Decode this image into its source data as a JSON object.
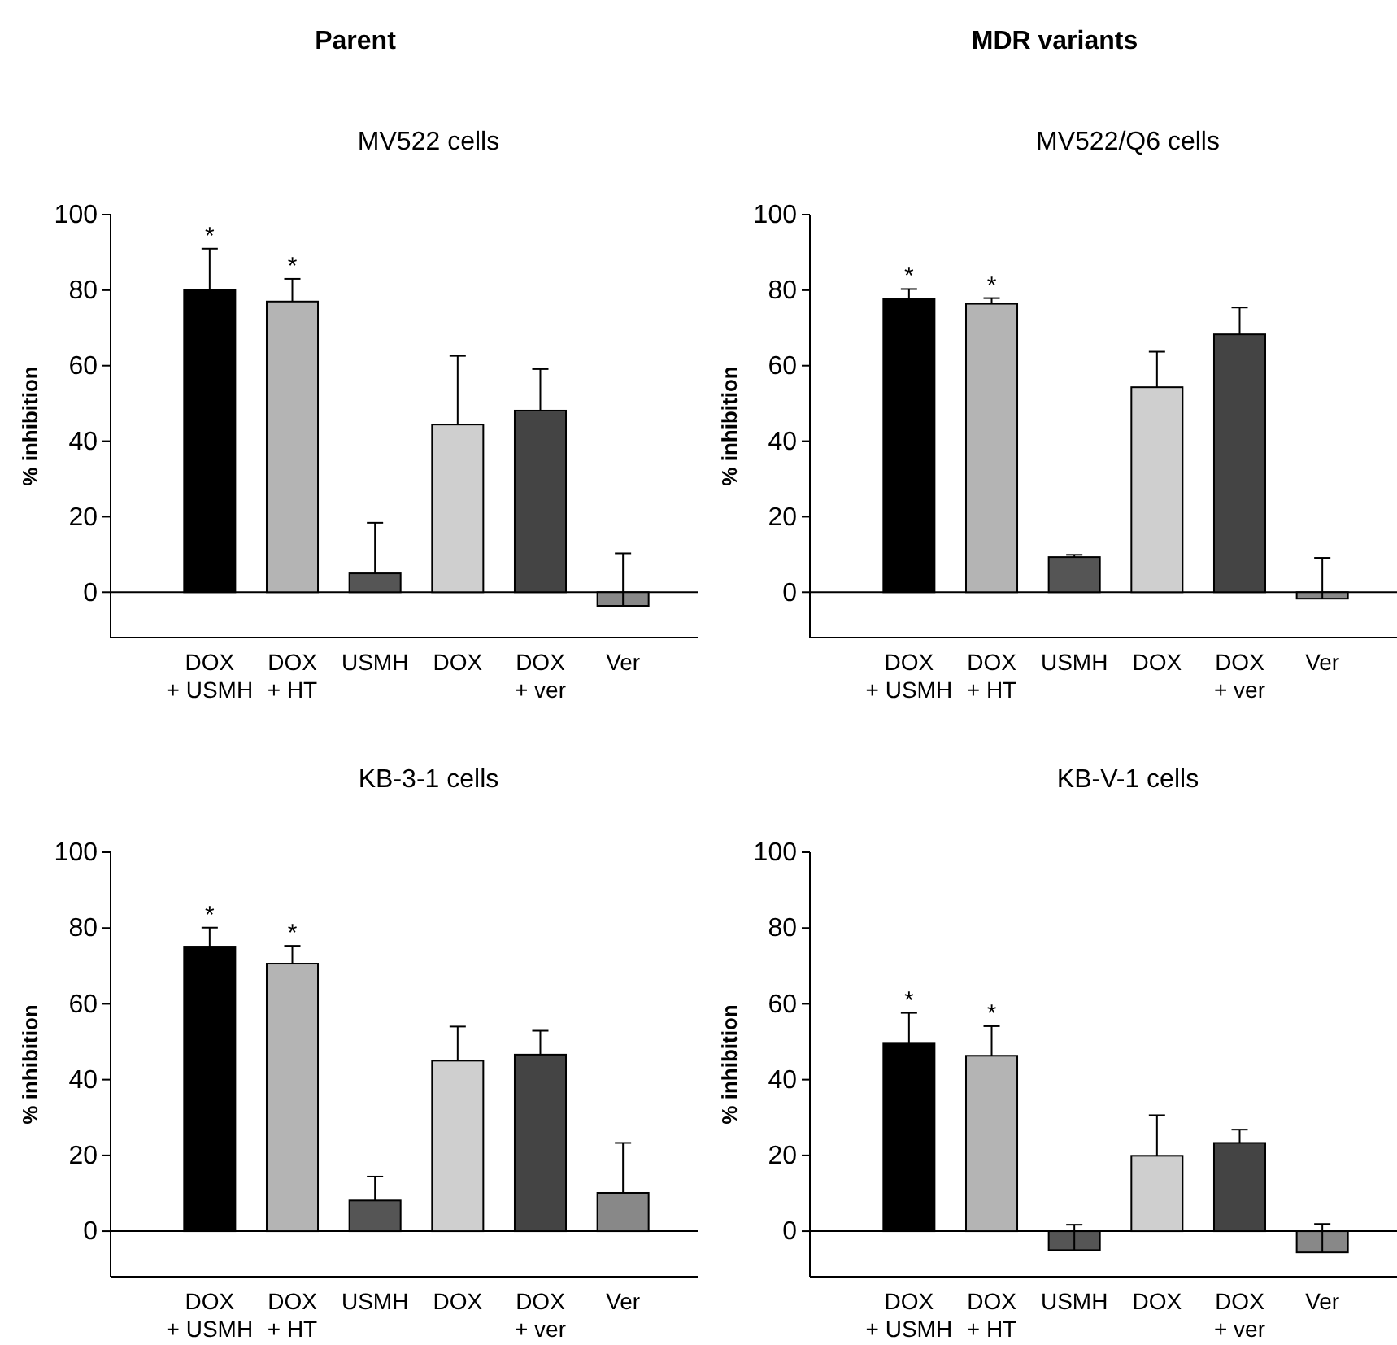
{
  "chart_data": [
    {
      "type": "bar",
      "title": "MV522 cells",
      "annotations": [
        "Parent",
        {
          "text": "*",
          "x": "DOX\n+ USMH",
          "y": 80
        },
        {
          "text": "*",
          "x": "DOX\n+ HT",
          "y": 77
        }
      ],
      "ylabel": "% inhibition",
      "categories": [
        "DOX\n+ USMH",
        "DOX\n+ HT",
        "USMH",
        "DOX",
        "DOX\n+ ver",
        "Ver"
      ],
      "values": [
        80,
        77,
        5,
        44.4,
        48.1,
        -3.6
      ],
      "errors": [
        [
          80,
          91
        ],
        [
          77,
          83
        ],
        [
          5,
          18.4
        ],
        [
          44.4,
          62.6
        ],
        [
          48.1,
          59.1
        ],
        [
          -3.6,
          10.3
        ]
      ],
      "colors": [
        "#000000",
        "#b4b4b4",
        "#555555",
        "#cfcfcf",
        "#444444",
        "#888888"
      ],
      "ylim": [
        -12,
        100
      ],
      "yticks": [
        0,
        20,
        40,
        60,
        80,
        100
      ],
      "ref_lines": [
        {
          "axis": "y",
          "value": 0,
          "color": "#000000"
        }
      ],
      "grid": false
    },
    {
      "type": "bar",
      "title": "MV522/Q6 cells",
      "annotations": [
        "MDR variants",
        {
          "text": "*",
          "x": "DOX\n+ USMH",
          "y": 77.7
        },
        {
          "text": "*",
          "x": "DOX\n+ HT",
          "y": 76.4
        }
      ],
      "ylabel": "% inhibition",
      "categories": [
        "DOX\n+ USMH",
        "DOX\n+ HT",
        "USMH",
        "DOX",
        "DOX\n+ ver",
        "Ver"
      ],
      "values": [
        77.7,
        76.4,
        9.3,
        54.3,
        68.3,
        -1.7
      ],
      "errors": [
        [
          77.7,
          80.3
        ],
        [
          76.4,
          77.9
        ],
        [
          9.3,
          9.9
        ],
        [
          54.3,
          63.7
        ],
        [
          68.3,
          75.4
        ],
        [
          -1.7,
          9.1
        ]
      ],
      "colors": [
        "#000000",
        "#b4b4b4",
        "#555555",
        "#cfcfcf",
        "#444444",
        "#888888"
      ],
      "ylim": [
        -12,
        100
      ],
      "yticks": [
        0,
        20,
        40,
        60,
        80,
        100
      ],
      "ref_lines": [
        {
          "axis": "y",
          "value": 0,
          "color": "#000000"
        }
      ],
      "grid": false
    },
    {
      "type": "bar",
      "title": "KB-3-1 cells",
      "annotations": [
        {
          "text": "*",
          "x": "DOX\n+ USMH",
          "y": 75.1
        },
        {
          "text": "*",
          "x": "DOX\n+ HT",
          "y": 70.6
        }
      ],
      "ylabel": "% inhibition",
      "categories": [
        "DOX\n+ USMH",
        "DOX\n+ HT",
        "USMH",
        "DOX",
        "DOX\n+ ver",
        "Ver"
      ],
      "values": [
        75.1,
        70.6,
        8.1,
        45,
        46.6,
        10.1
      ],
      "errors": [
        [
          75.1,
          80.1
        ],
        [
          70.6,
          75.3
        ],
        [
          8.1,
          14.4
        ],
        [
          45,
          54
        ],
        [
          46.6,
          52.9
        ],
        [
          10.1,
          23.3
        ]
      ],
      "colors": [
        "#000000",
        "#b4b4b4",
        "#555555",
        "#cfcfcf",
        "#444444",
        "#888888"
      ],
      "ylim": [
        -12,
        100
      ],
      "yticks": [
        0,
        20,
        40,
        60,
        80,
        100
      ],
      "ref_lines": [
        {
          "axis": "y",
          "value": 0,
          "color": "#000000"
        }
      ],
      "grid": false
    },
    {
      "type": "bar",
      "title": "KB-V-1 cells",
      "annotations": [
        {
          "text": "*",
          "x": "DOX\n+ USMH",
          "y": 49.5
        },
        {
          "text": "*",
          "x": "DOX\n+ HT",
          "y": 46.3
        }
      ],
      "ylabel": "% inhibition",
      "categories": [
        "DOX\n+ USMH",
        "DOX\n+ HT",
        "USMH",
        "DOX",
        "DOX\n+ ver",
        "Ver"
      ],
      "values": [
        49.5,
        46.3,
        -5,
        19.9,
        23.3,
        -5.6
      ],
      "errors": [
        [
          49.5,
          57.6
        ],
        [
          46.3,
          54.1
        ],
        [
          -5,
          1.7
        ],
        [
          19.9,
          30.6
        ],
        [
          23.3,
          26.8
        ],
        [
          -5.6,
          1.9
        ]
      ],
      "colors": [
        "#000000",
        "#b4b4b4",
        "#555555",
        "#cfcfcf",
        "#444444",
        "#888888"
      ],
      "ylim": [
        -12,
        100
      ],
      "yticks": [
        0,
        20,
        40,
        60,
        80,
        100
      ],
      "ref_lines": [
        {
          "axis": "y",
          "value": 0,
          "color": "#000000"
        }
      ],
      "grid": false
    }
  ]
}
